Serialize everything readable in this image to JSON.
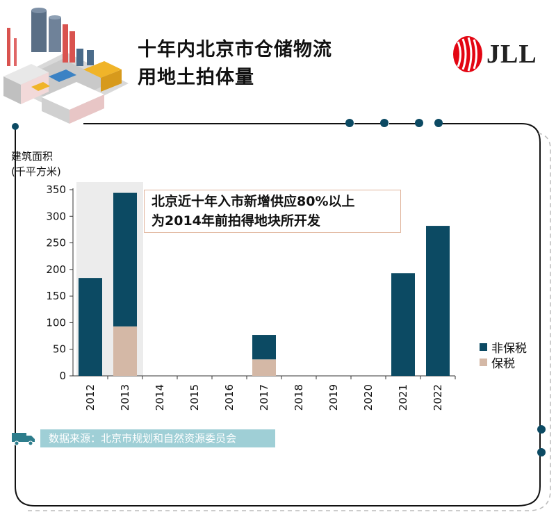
{
  "header": {
    "title_line1": "十年内北京市仓储物流",
    "title_line2": "用地土拍体量",
    "logo_text": "JLL"
  },
  "chart_data": {
    "type": "bar",
    "stacked": true,
    "categories": [
      "2012",
      "2013",
      "2014",
      "2015",
      "2016",
      "2017",
      "2018",
      "2019",
      "2020",
      "2021",
      "2022"
    ],
    "series": [
      {
        "name": "保税",
        "color": "#d4b8a6",
        "values": [
          0,
          93,
          0,
          0,
          0,
          31,
          0,
          0,
          0,
          0,
          0
        ]
      },
      {
        "name": "非保税",
        "color": "#0c4a63",
        "values": [
          184,
          251,
          0,
          0,
          0,
          46,
          0,
          0,
          0,
          193,
          282
        ]
      }
    ],
    "ylabel_line1": "建筑面积",
    "ylabel_line2": "(千平方米)",
    "ylim": [
      0,
      350
    ],
    "yticks": [
      0,
      50,
      100,
      150,
      200,
      250,
      300,
      350
    ],
    "highlight_categories": [
      "2012",
      "2013"
    ],
    "legend_position": "right",
    "annotation_line1": "北京近十年入市新增供应80%以上",
    "annotation_line2": "为2014年前拍得地块所开发"
  },
  "legend": {
    "items": [
      {
        "label": "非保税",
        "color": "#0c4a63"
      },
      {
        "label": "保税",
        "color": "#d4b8a6"
      }
    ]
  },
  "source": {
    "text": "数据来源：北京市规划和自然资源委员会"
  }
}
